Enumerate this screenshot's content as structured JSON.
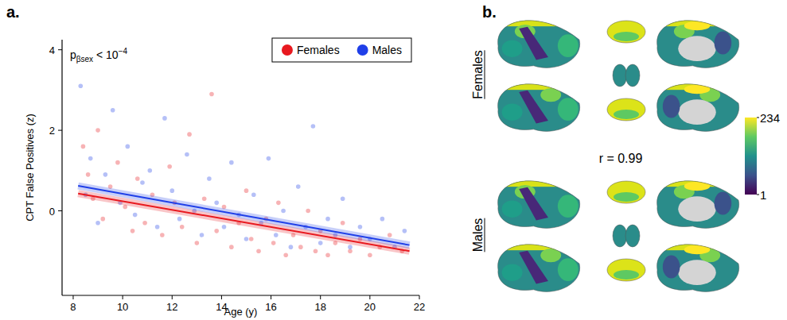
{
  "chart_data": [
    {
      "type": "scatter",
      "panel": "a.",
      "x_label": "Age (y)",
      "y_label": "CPT False Positives (z)",
      "annotation": {
        "base": "p",
        "subscript": "βsex",
        "text": " < 10",
        "superscript": "−4"
      },
      "xlim": [
        7.55,
        22
      ],
      "xticks": [
        8,
        10,
        12,
        14,
        16,
        18,
        20,
        22
      ],
      "ylim": [
        -2.1,
        4.25
      ],
      "yticks": [
        0,
        2,
        4
      ],
      "legend": "top right",
      "series": [
        {
          "name": "Females",
          "color": "#e8191f",
          "x": [
            8.4,
            8.6,
            8.8,
            9.0,
            9.2,
            9.5,
            9.8,
            10.1,
            10.4,
            10.6,
            10.9,
            11.2,
            11.6,
            11.9,
            12.1,
            12.4,
            12.7,
            13.0,
            13.3,
            13.6,
            13.8,
            14.1,
            14.4,
            14.7,
            15.0,
            15.2,
            15.5,
            15.8,
            16.1,
            16.3,
            16.6,
            16.9,
            17.2,
            17.5,
            17.8,
            18.0,
            18.3,
            18.6,
            18.9,
            19.2,
            19.6,
            20.0,
            20.4,
            20.8,
            21.3
          ],
          "values": [
            1.6,
            0.9,
            0.3,
            2.0,
            -0.2,
            0.6,
            1.2,
            0.1,
            -0.5,
            0.8,
            -0.3,
            0.4,
            -0.6,
            1.1,
            0.2,
            -0.4,
            1.9,
            -0.8,
            0.3,
            2.9,
            -0.5,
            0.1,
            -0.9,
            -0.3,
            0.5,
            -0.7,
            -1.0,
            -0.2,
            -0.8,
            0.2,
            -1.1,
            -0.6,
            -0.9,
            0.0,
            -1.0,
            -0.5,
            -1.1,
            -0.8,
            -0.3,
            -1.0,
            -0.7,
            -1.1,
            -0.9,
            -0.6,
            -1.0
          ],
          "fit": {
            "x": [
              8.2,
              21.6
            ],
            "values": [
              0.43,
              -1.0
            ]
          }
        },
        {
          "name": "Males",
          "color": "#1f3fe8",
          "x": [
            8.3,
            8.5,
            8.7,
            9.0,
            9.3,
            9.6,
            9.9,
            10.2,
            10.5,
            10.8,
            11.1,
            11.4,
            11.7,
            12.0,
            12.3,
            12.6,
            12.9,
            13.2,
            13.5,
            13.8,
            14.1,
            14.4,
            14.7,
            15.0,
            15.3,
            15.6,
            15.9,
            16.2,
            16.5,
            16.8,
            17.1,
            17.4,
            17.7,
            18.0,
            18.3,
            18.6,
            18.9,
            19.2,
            19.6,
            20.0,
            20.5,
            21.0,
            21.4
          ],
          "values": [
            3.1,
            0.4,
            1.3,
            -0.3,
            0.9,
            2.5,
            0.2,
            1.6,
            -0.1,
            0.7,
            1.0,
            -0.4,
            2.3,
            0.5,
            -0.2,
            1.4,
            0.0,
            -0.6,
            0.8,
            0.2,
            -0.4,
            1.2,
            -0.1,
            -0.7,
            0.4,
            -0.3,
            1.3,
            -0.6,
            0.0,
            -0.9,
            0.6,
            -0.4,
            2.1,
            -0.8,
            -0.2,
            -0.6,
            0.3,
            -0.9,
            -0.4,
            -0.7,
            -0.2,
            -0.9,
            -0.5
          ],
          "fit": {
            "x": [
              8.2,
              21.6
            ],
            "values": [
              0.62,
              -0.85
            ]
          }
        }
      ]
    },
    {
      "type": "brain_map",
      "panel": "b.",
      "row_labels": [
        "Females",
        "Males"
      ],
      "annotation": "r = 0.99",
      "colorbar": {
        "range": [
          1,
          234
        ],
        "ticks": [
          1,
          234
        ]
      }
    }
  ]
}
